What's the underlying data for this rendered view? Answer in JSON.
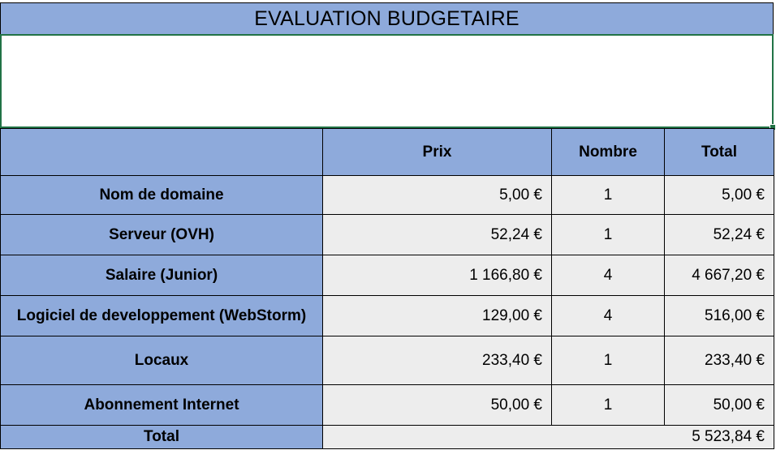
{
  "title": "EVALUATION BUDGETAIRE",
  "columns": {
    "prix": "Prix",
    "nombre": "Nombre",
    "total": "Total"
  },
  "rows": [
    {
      "label": "Nom de domaine",
      "prix": "5,00 €",
      "nombre": "1",
      "total": "5,00 €"
    },
    {
      "label": "Serveur (OVH)",
      "prix": "52,24 €",
      "nombre": "1",
      "total": "52,24 €"
    },
    {
      "label": "Salaire (Junior)",
      "prix": "1 166,80 €",
      "nombre": "4",
      "total": "4 667,20 €"
    },
    {
      "label": "Logiciel de developpement (WebStorm)",
      "prix": "129,00 €",
      "nombre": "4",
      "total": "516,00 €"
    },
    {
      "label": "Locaux",
      "prix": "233,40 €",
      "nombre": "1",
      "total": "233,40 €"
    },
    {
      "label": "Abonnement Internet",
      "prix": "50,00 €",
      "nombre": "1",
      "total": "50,00 €"
    }
  ],
  "footer": {
    "label": "Total",
    "value": "5 523,84 €"
  },
  "colors": {
    "header_blue": "#8eaadb",
    "value_gray": "#ededed",
    "selection_green": "#217346"
  }
}
